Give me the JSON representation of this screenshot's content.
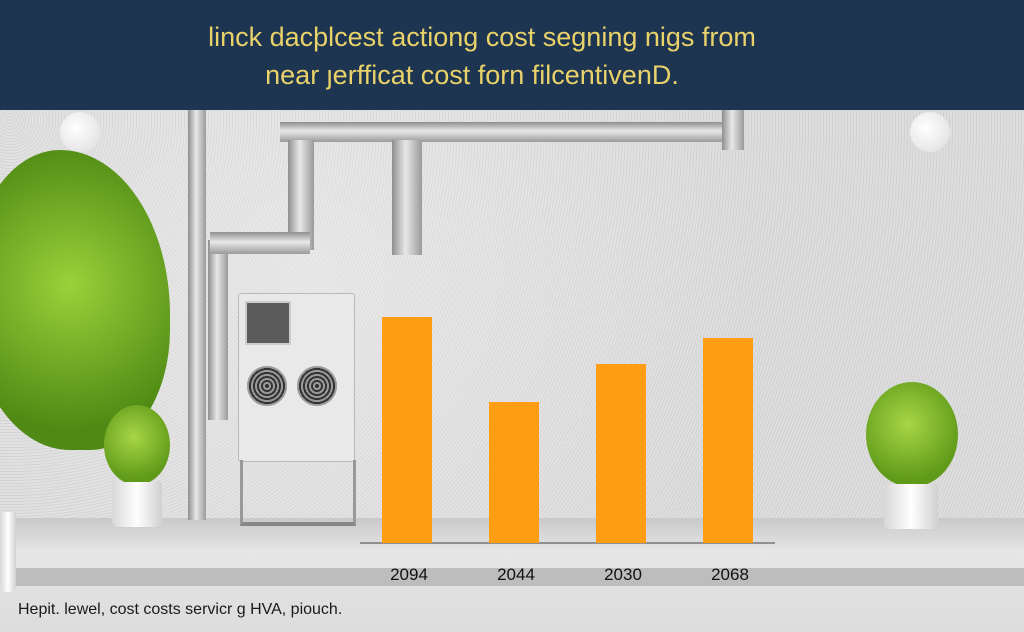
{
  "header": {
    "line1": "linck dacþlcest actiong cost segning nigs from",
    "line2": "near ȷerfficat cost forn  filcentivenD."
  },
  "caption": "Hepit. lewel, cost costs servicr g HVA, piouch.",
  "chart_data": {
    "type": "bar",
    "categories": [
      "2094",
      "2044",
      "2030",
      "2068"
    ],
    "values": [
      226,
      141,
      179,
      205
    ],
    "ylim": [
      0,
      260
    ],
    "grid": false,
    "bar_color": "#ff9d14"
  }
}
